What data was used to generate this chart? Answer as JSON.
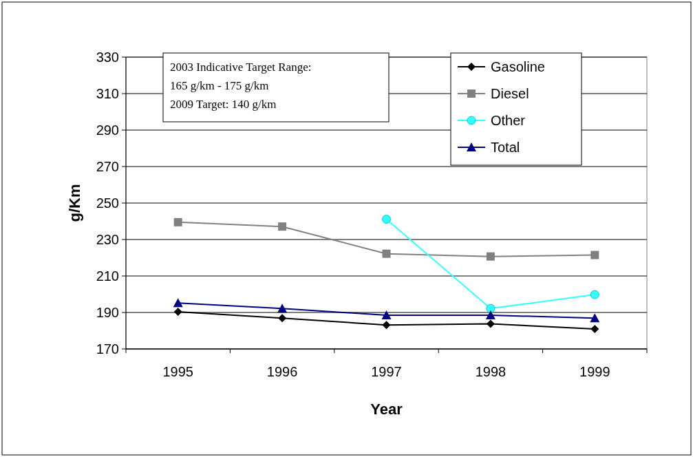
{
  "chart_data": {
    "type": "line",
    "xlabel": "Year",
    "ylabel": "g/Km",
    "categories": [
      "1995",
      "1996",
      "1997",
      "1998",
      "1999"
    ],
    "series": [
      {
        "name": "Gasoline",
        "color": "#000000",
        "marker": "diamond",
        "values": [
          190.4,
          186.9,
          183.1,
          183.8,
          180.9
        ]
      },
      {
        "name": "Diesel",
        "color": "#808080",
        "marker": "square",
        "values": [
          239.5,
          237.1,
          222.2,
          220.7,
          221.5
        ]
      },
      {
        "name": "Other",
        "color": "#33ffff",
        "marker": "circle",
        "values": [
          null,
          null,
          241.1,
          192.2,
          199.8
        ]
      },
      {
        "name": "Total",
        "color": "#000080",
        "marker": "triangle",
        "values": [
          195.2,
          192.2,
          188.5,
          188.5,
          186.9
        ]
      }
    ],
    "ylim": [
      170,
      330
    ],
    "yticks": [
      170,
      190,
      210,
      230,
      250,
      270,
      290,
      310,
      330
    ],
    "grid": "y",
    "legend": "top right",
    "annotations": [
      "2003 Indicative Target Range:",
      "165 g/km - 175 g/km",
      "2009 Target: 140 g/km"
    ]
  }
}
